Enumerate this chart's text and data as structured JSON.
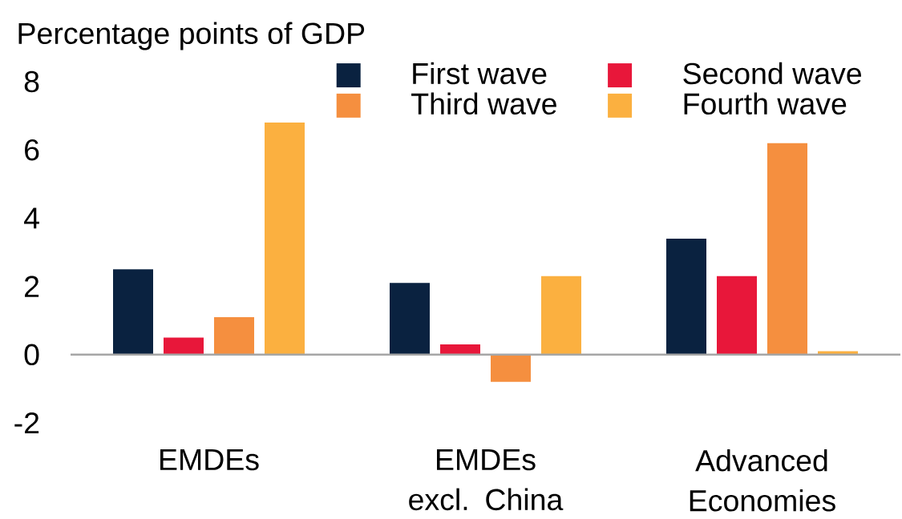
{
  "chart_data": {
    "type": "bar",
    "ylabel": "Percentage points of GDP",
    "categories": [
      "EMDEs",
      "EMDEs excl. China",
      "Advanced Economies"
    ],
    "series": [
      {
        "name": "First wave",
        "color": "#0a2240",
        "values": [
          2.5,
          2.1,
          3.4
        ]
      },
      {
        "name": "Second wave",
        "color": "#e8173a",
        "values": [
          0.5,
          0.3,
          2.3
        ]
      },
      {
        "name": "Third wave",
        "color": "#f58f3f",
        "values": [
          1.1,
          -0.8,
          6.2
        ]
      },
      {
        "name": "Fourth wave",
        "color": "#fbb040",
        "values": [
          6.8,
          2.3,
          0.1
        ]
      }
    ],
    "ylim": [
      -2,
      8
    ],
    "yticks": [
      -2,
      0,
      2,
      4,
      6,
      8
    ],
    "ref_lines": [
      {
        "axis": "y",
        "value": 0,
        "color": "#a6a6a6"
      }
    ],
    "legend": "top right"
  }
}
